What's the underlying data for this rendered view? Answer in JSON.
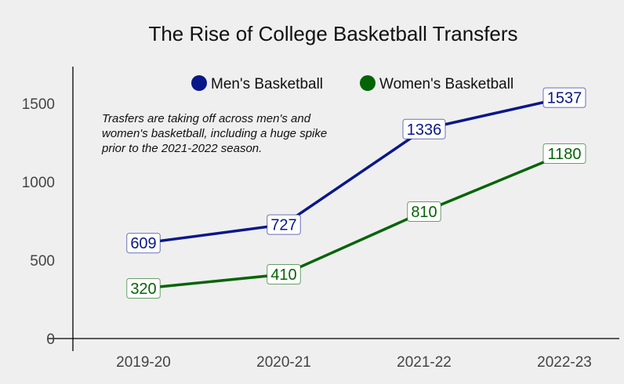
{
  "chart_data": {
    "type": "line",
    "title": "The Rise of College Basketball Transfers",
    "categories": [
      "2019-20",
      "2020-21",
      "2021-22",
      "2022-23"
    ],
    "series": [
      {
        "name": "Men's Basketball",
        "values": [
          609,
          727,
          1336,
          1537
        ],
        "color": "#0a1789"
      },
      {
        "name": "Women's Basketball",
        "values": [
          320,
          410,
          810,
          1180
        ],
        "color": "#056405"
      }
    ],
    "yticks": [
      0,
      500,
      1000,
      1500
    ],
    "ylim": [
      0,
      1750
    ],
    "xlabel": "",
    "ylabel": "",
    "grid": false,
    "legend_placement": "top",
    "annotation": [
      "Trasfers are taking off across men's and",
      "women's basketball, including a huge spike",
      "prior to the 2021-2022 season."
    ]
  }
}
